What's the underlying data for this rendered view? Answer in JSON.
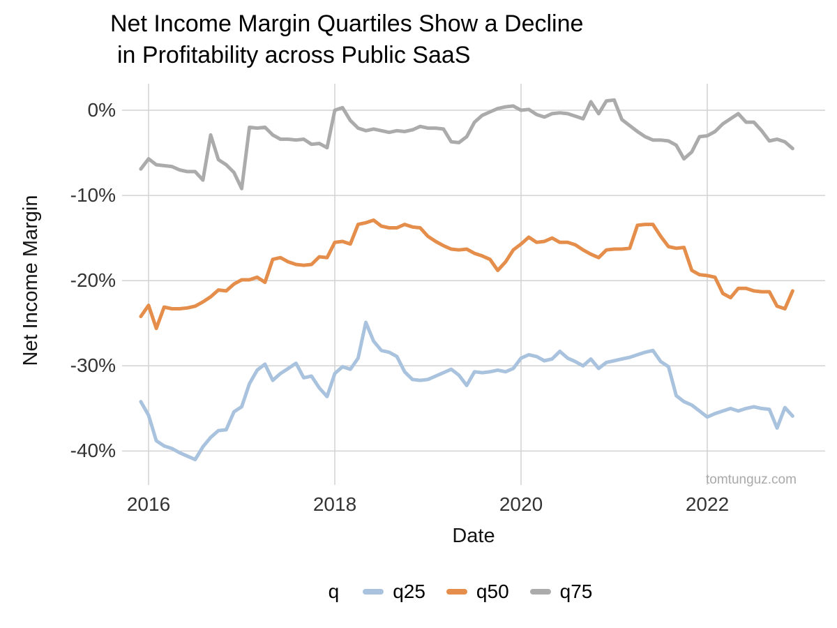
{
  "chart_data": {
    "type": "line",
    "title_line1": "Net Income Margin Quartiles Show a Decline",
    "title_line2": "in Profitability across Public SaaS",
    "xlabel": "Date",
    "ylabel": "Net Income Margin",
    "watermark": "tomtunguz.com",
    "grid": true,
    "legend": {
      "title": "q",
      "position": "bottom"
    },
    "x_axis": {
      "tick_labels": [
        "2016",
        "2018",
        "2020",
        "2022"
      ],
      "tick_years": [
        2016,
        2018,
        2020,
        2022
      ]
    },
    "y_axis": {
      "tick_labels": [
        "0%",
        "-10%",
        "-20%",
        "-30%",
        "-40%"
      ],
      "tick_values": [
        0,
        -10,
        -20,
        -30,
        -40
      ],
      "ylim": [
        -44,
        3
      ]
    },
    "x_months": [
      "2015-12",
      "2016-01",
      "2016-02",
      "2016-03",
      "2016-04",
      "2016-05",
      "2016-06",
      "2016-07",
      "2016-08",
      "2016-09",
      "2016-10",
      "2016-11",
      "2016-12",
      "2017-01",
      "2017-02",
      "2017-03",
      "2017-04",
      "2017-05",
      "2017-06",
      "2017-07",
      "2017-08",
      "2017-09",
      "2017-10",
      "2017-11",
      "2017-12",
      "2018-01",
      "2018-02",
      "2018-03",
      "2018-04",
      "2018-05",
      "2018-06",
      "2018-07",
      "2018-08",
      "2018-09",
      "2018-10",
      "2018-11",
      "2018-12",
      "2019-01",
      "2019-02",
      "2019-03",
      "2019-04",
      "2019-05",
      "2019-06",
      "2019-07",
      "2019-08",
      "2019-09",
      "2019-10",
      "2019-11",
      "2019-12",
      "2020-01",
      "2020-02",
      "2020-03",
      "2020-04",
      "2020-05",
      "2020-06",
      "2020-07",
      "2020-08",
      "2020-09",
      "2020-10",
      "2020-11",
      "2020-12",
      "2021-01",
      "2021-02",
      "2021-03",
      "2021-04",
      "2021-05",
      "2021-06",
      "2021-07",
      "2021-08",
      "2021-09",
      "2021-10",
      "2021-11",
      "2021-12",
      "2022-01",
      "2022-02",
      "2022-03",
      "2022-04",
      "2022-05",
      "2022-06",
      "2022-07",
      "2022-08",
      "2022-09",
      "2022-10",
      "2022-11",
      "2022-12"
    ],
    "series": [
      {
        "name": "q25",
        "color": "#a9c2dd",
        "values": [
          -34.2,
          -35.8,
          -38.8,
          -39.4,
          -39.7,
          -40.2,
          -40.6,
          -41.0,
          -39.5,
          -38.4,
          -37.6,
          -37.5,
          -35.4,
          -34.8,
          -32.1,
          -30.5,
          -29.8,
          -31.7,
          -30.9,
          -30.3,
          -29.7,
          -31.4,
          -31.2,
          -32.6,
          -33.6,
          -30.9,
          -30.1,
          -30.4,
          -29.1,
          -24.9,
          -27.1,
          -28.2,
          -28.4,
          -28.9,
          -30.7,
          -31.6,
          -31.7,
          -31.6,
          -31.2,
          -30.8,
          -30.4,
          -31.1,
          -32.3,
          -30.7,
          -30.8,
          -30.7,
          -30.5,
          -30.7,
          -30.3,
          -29.1,
          -28.7,
          -28.9,
          -29.4,
          -29.2,
          -28.3,
          -29.1,
          -29.5,
          -30.0,
          -29.2,
          -30.3,
          -29.6,
          -29.4,
          -29.2,
          -29.0,
          -28.7,
          -28.4,
          -28.2,
          -29.5,
          -30.1,
          -33.5,
          -34.2,
          -34.6,
          -35.3,
          -36.0,
          -35.6,
          -35.3,
          -35.0,
          -35.3,
          -35.0,
          -34.8,
          -35.0,
          -35.1,
          -37.3,
          -34.9,
          -35.9
        ]
      },
      {
        "name": "q50",
        "color": "#e58d4a",
        "values": [
          -24.2,
          -22.9,
          -25.6,
          -23.1,
          -23.3,
          -23.3,
          -23.2,
          -23.0,
          -22.5,
          -21.9,
          -21.1,
          -21.2,
          -20.4,
          -19.9,
          -19.9,
          -19.6,
          -20.2,
          -17.5,
          -17.3,
          -17.8,
          -18.1,
          -18.2,
          -18.1,
          -17.2,
          -17.3,
          -15.5,
          -15.4,
          -15.7,
          -13.4,
          -13.2,
          -12.9,
          -13.6,
          -13.8,
          -13.8,
          -13.4,
          -13.7,
          -13.8,
          -14.8,
          -15.4,
          -15.9,
          -16.3,
          -16.4,
          -16.3,
          -16.8,
          -17.1,
          -17.5,
          -18.8,
          -17.8,
          -16.4,
          -15.7,
          -14.9,
          -15.5,
          -15.4,
          -15.0,
          -15.5,
          -15.5,
          -15.8,
          -16.4,
          -16.9,
          -17.3,
          -16.4,
          -16.3,
          -16.3,
          -16.2,
          -13.5,
          -13.4,
          -13.4,
          -14.8,
          -16.0,
          -16.2,
          -16.1,
          -18.8,
          -19.3,
          -19.4,
          -19.6,
          -21.5,
          -22.0,
          -20.9,
          -20.9,
          -21.2,
          -21.3,
          -21.3,
          -23.0,
          -23.3,
          -21.2
        ]
      },
      {
        "name": "q75",
        "color": "#ababab",
        "values": [
          -6.9,
          -5.7,
          -6.4,
          -6.5,
          -6.6,
          -7.0,
          -7.2,
          -7.2,
          -8.2,
          -2.9,
          -5.8,
          -6.4,
          -7.3,
          -9.2,
          -2.0,
          -2.1,
          -2.0,
          -2.9,
          -3.4,
          -3.4,
          -3.5,
          -3.4,
          -4.0,
          -3.9,
          -4.4,
          0.0,
          0.3,
          -1.2,
          -2.1,
          -2.4,
          -2.2,
          -2.4,
          -2.6,
          -2.4,
          -2.5,
          -2.3,
          -1.9,
          -2.1,
          -2.1,
          -2.2,
          -3.7,
          -3.8,
          -3.1,
          -1.4,
          -0.6,
          -0.2,
          0.2,
          0.4,
          0.5,
          0.0,
          0.1,
          -0.5,
          -0.8,
          -0.4,
          -0.3,
          -0.4,
          -0.7,
          -1.0,
          1.0,
          -0.4,
          1.1,
          1.2,
          -1.1,
          -1.8,
          -2.5,
          -3.1,
          -3.5,
          -3.5,
          -3.6,
          -4.1,
          -5.7,
          -4.9,
          -3.1,
          -3.0,
          -2.5,
          -1.6,
          -1.0,
          -0.4,
          -1.4,
          -1.4,
          -2.4,
          -3.6,
          -3.4,
          -3.7,
          -4.5
        ]
      }
    ],
    "colors": {
      "gridline": "#d2d2d2",
      "tick_text": "#333333",
      "title_text": "#000000",
      "watermark_text": "#a9a9a9",
      "background": "#ffffff"
    }
  }
}
